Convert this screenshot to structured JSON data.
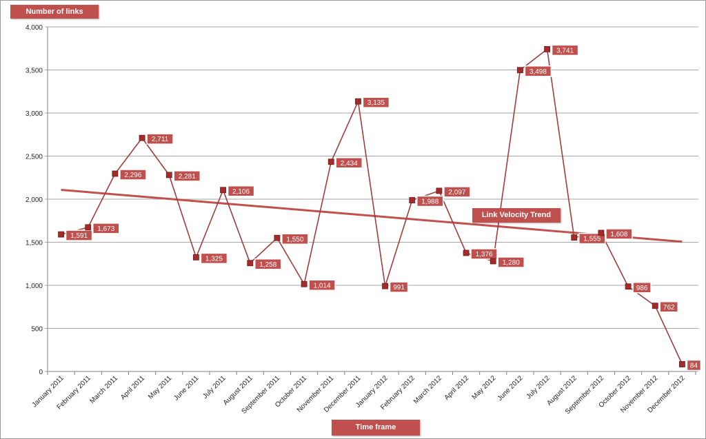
{
  "chart_data": {
    "type": "line",
    "ylabel": "Number of links",
    "xlabel": "Time frame",
    "trend_label": "Link Velocity Trend",
    "categories": [
      "January 2011",
      "February 2011",
      "March 2011",
      "April 2011",
      "May 2011",
      "June 2011",
      "July 2011",
      "August 2011",
      "September 2011",
      "October 2011",
      "November 2011",
      "December 2011",
      "January 2012",
      "February 2012",
      "March 2012",
      "April 2012",
      "May 2012",
      "June 2012",
      "July 2012",
      "August 2012",
      "September 2012",
      "October 2012",
      "November 2012",
      "December 2012"
    ],
    "series": [
      {
        "values": [
          1591,
          1673,
          2296,
          2711,
          2281,
          1325,
          2106,
          1258,
          1550,
          1014,
          2434,
          3135,
          991,
          1988,
          2097,
          1376,
          1280,
          3498,
          3741,
          1555,
          1608,
          986,
          762,
          84
        ],
        "labels": [
          "1,591",
          "1,673",
          "2,296",
          "2,711",
          "2,281",
          "1,325",
          "2,106",
          "1,258",
          "1,550",
          "1,014",
          "2,434",
          "3,135",
          "991",
          "1,988",
          "2,097",
          "1,376",
          "1,280",
          "3,498",
          "3,741",
          "1,555",
          "1,608",
          "986",
          "762",
          "84"
        ]
      }
    ],
    "trend": {
      "start": 2108,
      "end": 1506
    },
    "ylim": [
      0,
      4000
    ],
    "yticks": [
      0,
      500,
      1000,
      1500,
      2000,
      2500,
      3000,
      3500,
      4000
    ],
    "ytick_labels": [
      "0",
      "500",
      "1,000",
      "1,500",
      "2,000",
      "2,500",
      "3,000",
      "3,500",
      "4,000"
    ],
    "grid": true,
    "colors": {
      "line": "#a23b3b",
      "marker": "#a52a2a",
      "trend": "#c0504d",
      "label_bg": "#c0504d",
      "grid": "#a6a6a6"
    }
  }
}
